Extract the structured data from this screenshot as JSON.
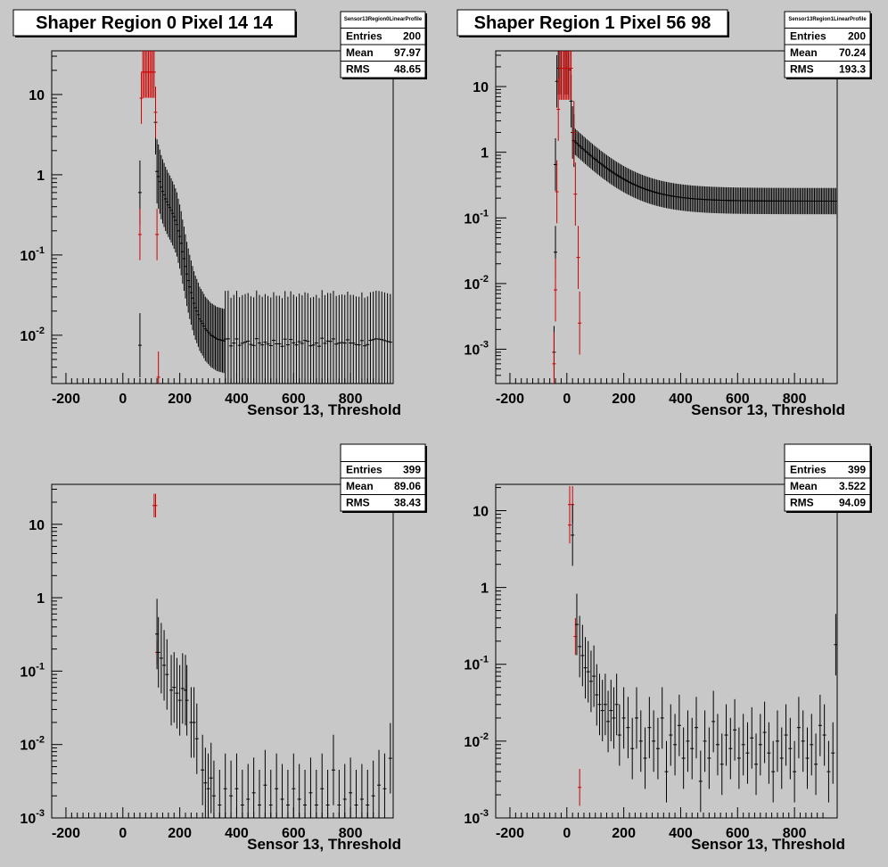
{
  "chart_data": [
    {
      "type": "scatter",
      "title": "Shaper Region 0 Pixel 14 14",
      "xlabel": "Sensor 13, Threshold",
      "ylabel": "",
      "xlim": [
        -250,
        950
      ],
      "ylim": [
        0.0025,
        35
      ],
      "yscale": "log",
      "grid": false,
      "stats": {
        "name": "Sensor13Region0LinearProfile",
        "entries": "200",
        "mean": "97.97",
        "rms": "48.65"
      },
      "curves": [
        {
          "color": "#000000",
          "err": 0.1,
          "points": [
            [
              60,
              0.0075
            ],
            [
              60,
              0.6
            ],
            [
              115,
              4.5
            ],
            [
              120,
              1.1
            ],
            [
              125,
              0.95
            ],
            [
              130,
              0.82
            ],
            [
              135,
              0.7
            ],
            [
              140,
              0.62
            ],
            [
              145,
              0.56
            ],
            [
              150,
              0.5
            ],
            [
              155,
              0.46
            ],
            [
              160,
              0.42
            ],
            [
              165,
              0.39
            ],
            [
              170,
              0.36
            ],
            [
              175,
              0.33
            ],
            [
              180,
              0.3
            ],
            [
              185,
              0.27
            ],
            [
              190,
              0.24
            ],
            [
              195,
              0.2
            ],
            [
              200,
              0.17
            ],
            [
              205,
              0.14
            ],
            [
              210,
              0.11
            ],
            [
              215,
              0.09
            ],
            [
              220,
              0.072
            ],
            [
              225,
              0.058
            ],
            [
              230,
              0.048
            ],
            [
              235,
              0.04
            ],
            [
              240,
              0.034
            ],
            [
              245,
              0.029
            ],
            [
              250,
              0.025
            ],
            [
              255,
              0.022
            ],
            [
              260,
              0.02
            ],
            [
              265,
              0.018
            ],
            [
              270,
              0.016
            ],
            [
              275,
              0.015
            ],
            [
              280,
              0.014
            ],
            [
              285,
              0.013
            ],
            [
              290,
              0.012
            ],
            [
              295,
              0.0115
            ],
            [
              300,
              0.011
            ],
            [
              305,
              0.0105
            ],
            [
              310,
              0.01
            ],
            [
              315,
              0.0098
            ],
            [
              320,
              0.0095
            ],
            [
              325,
              0.0093
            ],
            [
              330,
              0.009
            ],
            [
              335,
              0.0089
            ],
            [
              340,
              0.0088
            ],
            [
              345,
              0.0087
            ],
            [
              350,
              0.0086
            ],
            [
              355,
              0.0085
            ]
          ]
        },
        {
          "color": "#000000",
          "err": 0.15,
          "noise": 0.12,
          "xrange": [
            360,
            945
          ],
          "step": 10,
          "level": 0.0082
        },
        {
          "color": "#cc0000",
          "err": 0.08,
          "points": [
            [
              60,
              0.18
            ],
            [
              65,
              9
            ],
            [
              70,
              19
            ],
            [
              75,
              19
            ],
            [
              80,
              19
            ],
            [
              85,
              19
            ],
            [
              90,
              19
            ],
            [
              95,
              19
            ],
            [
              100,
              19
            ],
            [
              105,
              19
            ],
            [
              110,
              19
            ],
            [
              115,
              6
            ],
            [
              120,
              0.18
            ],
            [
              125,
              0.003
            ]
          ]
        }
      ]
    },
    {
      "type": "scatter",
      "title": "Shaper Region 1 Pixel 56 98",
      "xlabel": "Sensor 13, Threshold",
      "ylabel": "",
      "xlim": [
        -250,
        950
      ],
      "ylim": [
        0.0003,
        35
      ],
      "yscale": "log",
      "grid": false,
      "stats": {
        "name": "Sensor13Region1LinearProfile",
        "entries": "200",
        "mean": "70.24",
        "rms": "193.3"
      },
      "curves": [
        {
          "color": "#000000",
          "err": 0.1,
          "points": [
            [
              -45,
              0.0009
            ],
            [
              -40,
              0.03
            ],
            [
              -40,
              0.65
            ],
            [
              -35,
              12
            ],
            [
              -30,
              19
            ],
            [
              -25,
              19
            ],
            [
              -20,
              19
            ],
            [
              -15,
              19
            ],
            [
              -10,
              19
            ],
            [
              -5,
              19
            ],
            [
              0,
              19
            ],
            [
              5,
              19
            ],
            [
              10,
              18
            ],
            [
              15,
              6
            ],
            [
              20,
              2
            ],
            [
              25,
              1.5
            ]
          ]
        },
        {
          "color": "#000000",
          "err": 0.05,
          "decay": {
            "x0": 25,
            "x1": 945,
            "step": 5,
            "y0": 1.5,
            "yinf": 0.18,
            "tau": 95
          }
        },
        {
          "color": "#cc0000",
          "err": 0.12,
          "points": [
            [
              -45,
              0.0006
            ],
            [
              -40,
              0.008
            ],
            [
              -35,
              0.25
            ],
            [
              -30,
              4.5
            ],
            [
              -25,
              19
            ],
            [
              -20,
              19
            ],
            [
              -15,
              19
            ],
            [
              -10,
              19
            ],
            [
              -5,
              19
            ],
            [
              0,
              19
            ],
            [
              5,
              19
            ],
            [
              10,
              19
            ],
            [
              15,
              19
            ],
            [
              25,
              2
            ],
            [
              30,
              0.23
            ],
            [
              40,
              0.025
            ],
            [
              45,
              0.0025
            ]
          ]
        }
      ]
    },
    {
      "type": "scatter",
      "title": "",
      "xlabel": "Sensor 13, Threshold",
      "ylabel": "",
      "xlim": [
        -250,
        950
      ],
      "ylim": [
        0.001,
        35
      ],
      "yscale": "log",
      "grid": false,
      "stats": {
        "name": "",
        "entries": "399",
        "mean": "89.06",
        "rms": "38.43"
      },
      "curves": [
        {
          "color": "#cc0000",
          "err": 0.04,
          "points": [
            [
              110,
              18
            ],
            [
              115,
              18
            ],
            [
              120,
              0.18
            ]
          ]
        },
        {
          "color": "#000000",
          "err": 0.12,
          "points": [
            [
              120,
              0.32
            ],
            [
              125,
              0.18
            ],
            [
              135,
              0.15
            ],
            [
              145,
              0.12
            ],
            [
              155,
              0.09
            ],
            [
              170,
              0.055
            ],
            [
              180,
              0.06
            ],
            [
              190,
              0.05
            ],
            [
              200,
              0.04
            ],
            [
              210,
              0.058
            ],
            [
              220,
              0.055
            ],
            [
              225,
              0.04
            ],
            [
              240,
              0.02
            ],
            [
              250,
              0.02
            ],
            [
              260,
              0.012
            ],
            [
              280,
              0.0045
            ],
            [
              290,
              0.003
            ],
            [
              300,
              0.0025
            ],
            [
              310,
              0.0035
            ],
            [
              320,
              0.002
            ],
            [
              340,
              0.0015
            ],
            [
              360,
              0.0025
            ],
            [
              380,
              0.002
            ],
            [
              400,
              0.0025
            ],
            [
              420,
              0.0015
            ],
            [
              440,
              0.0018
            ],
            [
              460,
              0.0022
            ],
            [
              480,
              0.0015
            ],
            [
              500,
              0.0028
            ],
            [
              520,
              0.0015
            ],
            [
              540,
              0.0025
            ],
            [
              560,
              0.0018
            ],
            [
              580,
              0.0015
            ],
            [
              600,
              0.0025
            ],
            [
              620,
              0.0018
            ],
            [
              640,
              0.0015
            ],
            [
              660,
              0.0022
            ],
            [
              680,
              0.0015
            ],
            [
              700,
              0.0025
            ],
            [
              720,
              0.0015
            ],
            [
              740,
              0.0045
            ],
            [
              760,
              0.0015
            ],
            [
              780,
              0.0018
            ],
            [
              800,
              0.0022
            ],
            [
              820,
              0.0015
            ],
            [
              840,
              0.0018
            ],
            [
              860,
              0.0015
            ],
            [
              880,
              0.002
            ],
            [
              900,
              0.0028
            ],
            [
              920,
              0.0025
            ],
            [
              940,
              0.0065
            ]
          ]
        }
      ]
    },
    {
      "type": "scatter",
      "title": "",
      "xlabel": "Sensor 13, Threshold",
      "ylabel": "",
      "xlim": [
        -250,
        950
      ],
      "ylim": [
        0.001,
        22
      ],
      "yscale": "log",
      "grid": false,
      "stats": {
        "name": "",
        "entries": "399",
        "mean": "3.522",
        "rms": "94.09"
      },
      "curves": [
        {
          "color": "#cc0000",
          "err": 0.06,
          "points": [
            [
              10,
              12
            ],
            [
              20,
              12
            ],
            [
              10,
              6.5
            ],
            [
              30,
              0.23
            ],
            [
              45,
              0.0025
            ]
          ]
        },
        {
          "color": "#000000",
          "err": 0.1,
          "points": [
            [
              20,
              4.8
            ],
            [
              35,
              0.33
            ],
            [
              45,
              0.17
            ],
            [
              55,
              0.13
            ],
            [
              65,
              0.09
            ],
            [
              75,
              0.08
            ],
            [
              85,
              0.06
            ],
            [
              95,
              0.07
            ],
            [
              105,
              0.04
            ],
            [
              115,
              0.03
            ],
            [
              125,
              0.025
            ],
            [
              135,
              0.03
            ],
            [
              145,
              0.018
            ],
            [
              155,
              0.025
            ],
            [
              165,
              0.02
            ],
            [
              175,
              0.03
            ],
            [
              185,
              0.012
            ],
            [
              200,
              0.02
            ],
            [
              215,
              0.015
            ],
            [
              230,
              0.008
            ],
            [
              245,
              0.02
            ],
            [
              260,
              0.01
            ],
            [
              275,
              0.006
            ],
            [
              290,
              0.015
            ],
            [
              305,
              0.01
            ],
            [
              320,
              0.008
            ],
            [
              335,
              0.02
            ],
            [
              350,
              0.004
            ],
            [
              365,
              0.012
            ],
            [
              380,
              0.009
            ],
            [
              395,
              0.016
            ],
            [
              410,
              0.006
            ],
            [
              425,
              0.01
            ],
            [
              440,
              0.008
            ],
            [
              455,
              0.015
            ],
            [
              470,
              0.003
            ],
            [
              485,
              0.01
            ],
            [
              500,
              0.006
            ],
            [
              515,
              0.018
            ],
            [
              530,
              0.009
            ],
            [
              545,
              0.005
            ],
            [
              560,
              0.012
            ],
            [
              575,
              0.008
            ],
            [
              590,
              0.014
            ],
            [
              605,
              0.006
            ],
            [
              620,
              0.009
            ],
            [
              635,
              0.007
            ],
            [
              650,
              0.011
            ],
            [
              665,
              0.005
            ],
            [
              680,
              0.009
            ],
            [
              695,
              0.013
            ],
            [
              710,
              0.007
            ],
            [
              725,
              0.004
            ],
            [
              740,
              0.01
            ],
            [
              755,
              0.006
            ],
            [
              770,
              0.012
            ],
            [
              785,
              0.008
            ],
            [
              800,
              0.004
            ],
            [
              815,
              0.015
            ],
            [
              830,
              0.01
            ],
            [
              845,
              0.006
            ],
            [
              860,
              0.009
            ],
            [
              875,
              0.005
            ],
            [
              890,
              0.016
            ],
            [
              905,
              0.012
            ],
            [
              920,
              0.004
            ],
            [
              935,
              0.007
            ],
            [
              945,
              0.18
            ]
          ]
        }
      ]
    }
  ]
}
